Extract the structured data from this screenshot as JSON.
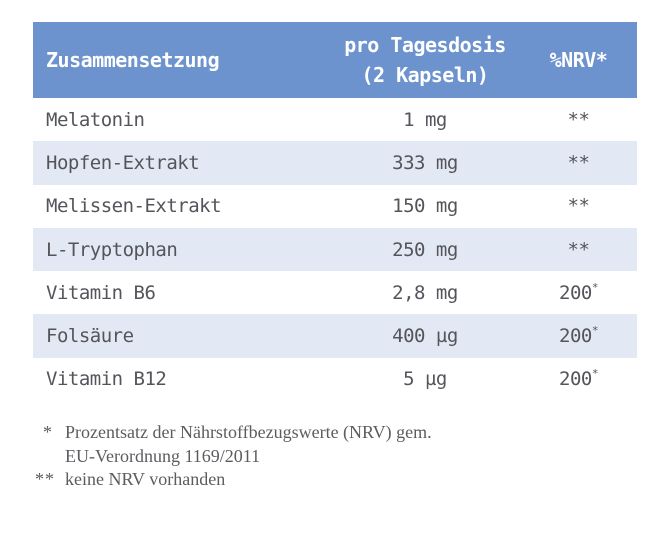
{
  "colors": {
    "header_bg": "#6D93CE",
    "stripe_bg": "#E3E9F4",
    "header_text": "#FFFFFF",
    "body_text": "#53555A",
    "footnote_text": "#5B5C60"
  },
  "table": {
    "header": {
      "composition": "Zusammensetzung",
      "dose_line1": "pro Tagesdosis",
      "dose_line2": "(2 Kapseln)",
      "nrv": "%NRV*"
    },
    "rows": [
      {
        "name": "Melatonin",
        "amount": "1 mg",
        "nrv": "**",
        "nrv_sup": ""
      },
      {
        "name": "Hopfen-Extrakt",
        "amount": "333 mg",
        "nrv": "**",
        "nrv_sup": ""
      },
      {
        "name": "Melissen-Extrakt",
        "amount": "150 mg",
        "nrv": "**",
        "nrv_sup": ""
      },
      {
        "name": "L-Tryptophan",
        "amount": "250 mg",
        "nrv": "**",
        "nrv_sup": ""
      },
      {
        "name": "Vitamin B6",
        "amount": "2,8 mg",
        "nrv": "200",
        "nrv_sup": "*"
      },
      {
        "name": "Folsäure",
        "amount": "400 µg",
        "nrv": "200",
        "nrv_sup": "*"
      },
      {
        "name": "Vitamin B12",
        "amount": "5 µg",
        "nrv": "200",
        "nrv_sup": "*"
      }
    ]
  },
  "footnotes": [
    {
      "marker": "*",
      "lines": [
        "Prozentsatz der Nährstoffbezugswerte (NRV) gem.",
        "EU-Verordnung 1169/2011"
      ]
    },
    {
      "marker": "**",
      "lines": [
        "keine NRV vorhanden"
      ]
    }
  ]
}
